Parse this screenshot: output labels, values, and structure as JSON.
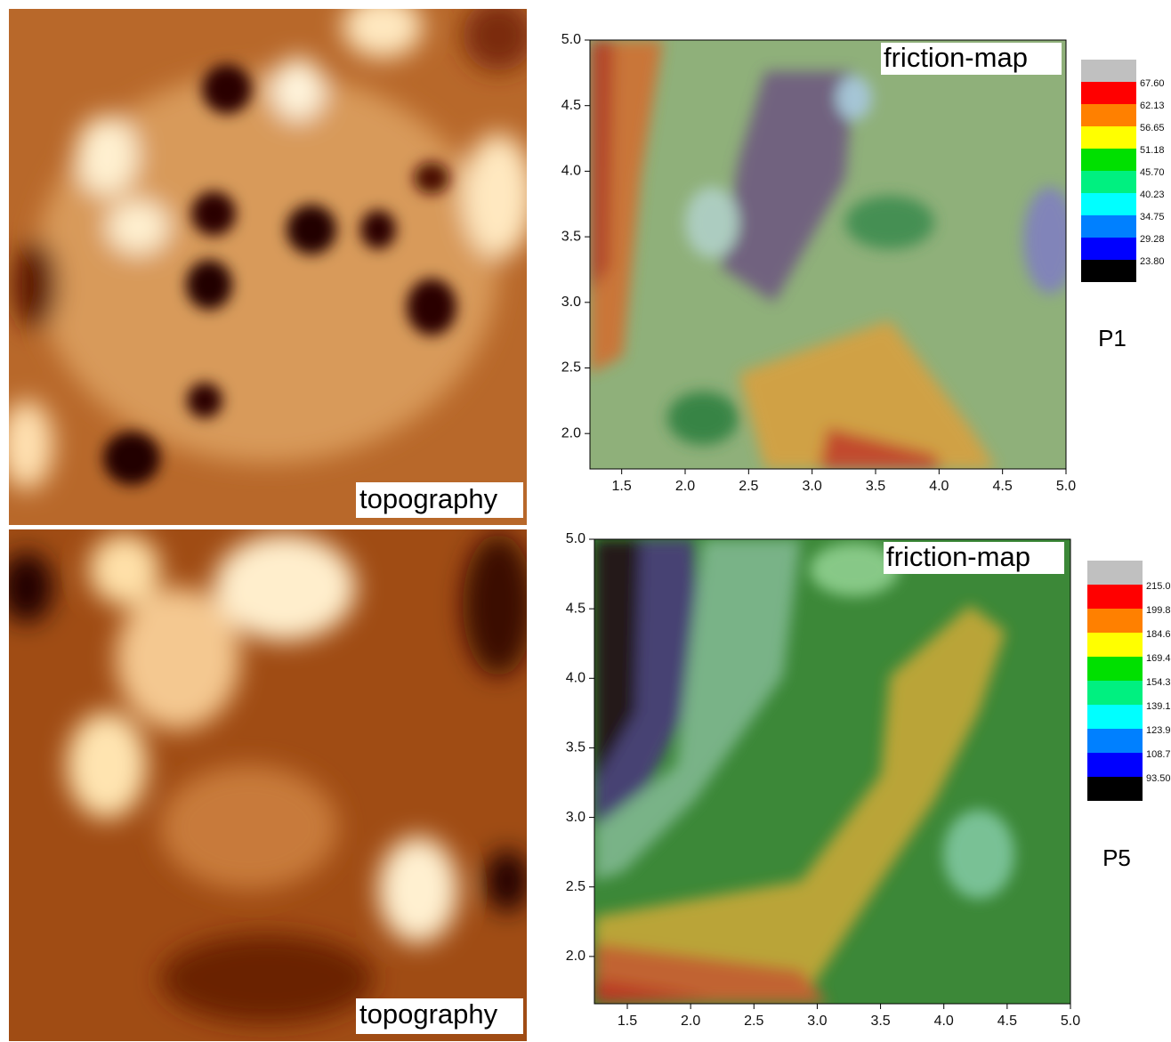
{
  "images": [
    {
      "label": "topography"
    },
    {
      "label": "topography"
    }
  ],
  "chart_data": [
    {
      "type": "contour",
      "annotation": "friction-map",
      "panel": "P1",
      "xlim": [
        1.25,
        5.0
      ],
      "ylim": [
        1.73,
        5.0
      ],
      "xticks": [
        {
          "value": 1.5,
          "label": "1.5"
        },
        {
          "value": 2,
          "label": "2.0"
        },
        {
          "value": 2.5,
          "label": "2.5"
        },
        {
          "value": 3,
          "label": "3.0"
        },
        {
          "value": 3.5,
          "label": "3.5"
        },
        {
          "value": 4,
          "label": "4.0"
        },
        {
          "value": 4.5,
          "label": "4.5"
        },
        {
          "value": 5,
          "label": "5.0"
        }
      ],
      "yticks": [
        {
          "value": 2,
          "label": "2.0"
        },
        {
          "value": 2.5,
          "label": "2.5"
        },
        {
          "value": 3,
          "label": "3.0"
        },
        {
          "value": 3.5,
          "label": "3.5"
        },
        {
          "value": 4,
          "label": "4.0"
        },
        {
          "value": 4.5,
          "label": "4.5"
        },
        {
          "value": 5,
          "label": "5.0"
        }
      ],
      "levels": [
        {
          "value": 67.6,
          "label": "67.60"
        },
        {
          "value": 62.13,
          "label": "62.13"
        },
        {
          "value": 56.65,
          "label": "56.65"
        },
        {
          "value": 51.18,
          "label": "51.18"
        },
        {
          "value": 45.7,
          "label": "45.70"
        },
        {
          "value": 40.23,
          "label": "40.23"
        },
        {
          "value": 34.75,
          "label": "34.75"
        },
        {
          "value": 29.28,
          "label": "29.28"
        },
        {
          "value": 23.8,
          "label": "23.80"
        }
      ],
      "colors": [
        "#ff0000",
        "#ff8000",
        "#ffff00",
        "#00e000",
        "#00f080",
        "#00ffff",
        "#0080ff",
        "#0000ff",
        "#000000"
      ],
      "over_color": "#c0c0c0"
    },
    {
      "type": "contour",
      "annotation": "friction-map",
      "panel": "P5",
      "xlim": [
        1.24,
        5.0
      ],
      "ylim": [
        1.66,
        5.0
      ],
      "xticks": [
        {
          "value": 1.5,
          "label": "1.5"
        },
        {
          "value": 2,
          "label": "2.0"
        },
        {
          "value": 2.5,
          "label": "2.5"
        },
        {
          "value": 3,
          "label": "3.0"
        },
        {
          "value": 3.5,
          "label": "3.5"
        },
        {
          "value": 4,
          "label": "4.0"
        },
        {
          "value": 4.5,
          "label": "4.5"
        },
        {
          "value": 5,
          "label": "5.0"
        }
      ],
      "yticks": [
        {
          "value": 2,
          "label": "2.0"
        },
        {
          "value": 2.5,
          "label": "2.5"
        },
        {
          "value": 3,
          "label": "3.0"
        },
        {
          "value": 3.5,
          "label": "3.5"
        },
        {
          "value": 4,
          "label": "4.0"
        },
        {
          "value": 4.5,
          "label": "4.5"
        },
        {
          "value": 5,
          "label": "5.0"
        }
      ],
      "levels": [
        {
          "value": 215.0,
          "label": "215.0"
        },
        {
          "value": 199.8,
          "label": "199.8"
        },
        {
          "value": 184.6,
          "label": "184.6"
        },
        {
          "value": 169.4,
          "label": "169.4"
        },
        {
          "value": 154.3,
          "label": "154.3"
        },
        {
          "value": 139.1,
          "label": "139.1"
        },
        {
          "value": 123.9,
          "label": "123.9"
        },
        {
          "value": 108.7,
          "label": "108.7"
        },
        {
          "value": 93.5,
          "label": "93.50"
        }
      ],
      "colors": [
        "#ff0000",
        "#ff8000",
        "#ffff00",
        "#00e000",
        "#00f080",
        "#00ffff",
        "#0080ff",
        "#0000ff",
        "#000000"
      ],
      "over_color": "#c0c0c0"
    }
  ]
}
